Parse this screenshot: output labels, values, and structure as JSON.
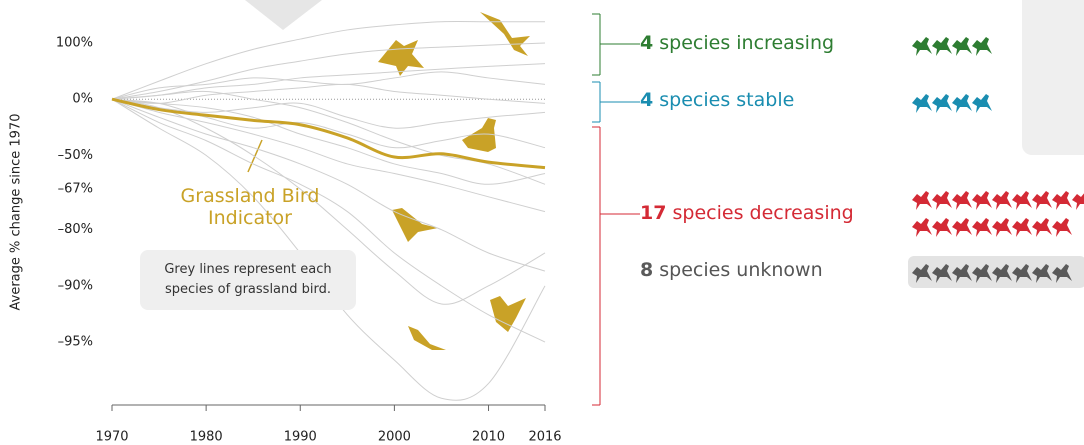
{
  "chart_data": {
    "type": "line",
    "y_label": "Average % change since 1970",
    "log_scale": true,
    "x": [
      1970,
      1975,
      1980,
      1985,
      1990,
      1995,
      2000,
      2005,
      2010,
      2016
    ],
    "xlim": [
      1970,
      2016
    ],
    "xticks": [
      1970,
      1980,
      1990,
      2000,
      2010,
      2016
    ],
    "ylim": [
      -97.7,
      240
    ],
    "yticks": [
      {
        "value": 100,
        "label": "100%"
      },
      {
        "value": 0,
        "label": "0%"
      },
      {
        "value": -50,
        "label": "–50%"
      },
      {
        "value": -67,
        "label": "–67%"
      },
      {
        "value": -80,
        "label": "–80%"
      },
      {
        "value": -90,
        "label": "–90%"
      },
      {
        "value": -95,
        "label": "–95%"
      }
    ],
    "series": [
      {
        "name": "Grassland Bird Indicator",
        "color": "#c9a227",
        "values": [
          0,
          -12,
          -18,
          -23,
          -27,
          -38,
          -51,
          -49,
          -54,
          -57
        ]
      }
    ],
    "species_color": "#cfcfcf",
    "species_lines": [
      [
        0,
        25,
        55,
        85,
        110,
        135,
        150,
        160,
        160,
        160
      ],
      [
        0,
        10,
        25,
        45,
        60,
        75,
        85,
        90,
        95,
        100
      ],
      [
        0,
        5,
        15,
        20,
        30,
        35,
        40,
        45,
        50,
        55
      ],
      [
        0,
        -5,
        5,
        10,
        15,
        20,
        10,
        5,
        0,
        -5
      ],
      [
        0,
        -10,
        -15,
        -10,
        -5,
        -20,
        -30,
        -25,
        -20,
        -15
      ],
      [
        0,
        -15,
        -25,
        -35,
        -45,
        -55,
        -60,
        -65,
        -70,
        -75
      ],
      [
        0,
        -20,
        -35,
        -45,
        -55,
        -65,
        -75,
        -80,
        -85,
        -88
      ],
      [
        0,
        -25,
        -40,
        -55,
        -65,
        -75,
        -85,
        -90,
        -93,
        -95
      ],
      [
        0,
        -30,
        -50,
        -70,
        -85,
        -93,
        -96,
        -97.5,
        -97,
        -90
      ],
      [
        0,
        -10,
        -30,
        -50,
        -67,
        -80,
        -88,
        -92,
        -90,
        -85
      ],
      [
        0,
        -5,
        -10,
        -20,
        -35,
        -45,
        -55,
        -60,
        -65,
        -60
      ],
      [
        0,
        5,
        10,
        0,
        -10,
        -25,
        -40,
        -50,
        -55,
        -65
      ],
      [
        0,
        15,
        20,
        30,
        25,
        20,
        30,
        40,
        30,
        20
      ],
      [
        0,
        -5,
        -20,
        -30,
        -25,
        -35,
        -45,
        -40,
        -35,
        -45
      ]
    ],
    "note": "Grey lines represent each species of grassland bird.",
    "groups": [
      {
        "count": 4,
        "label": "species increasing",
        "color": "#2e7d32"
      },
      {
        "count": 4,
        "label": "species stable",
        "color": "#1a8db0"
      },
      {
        "count": 17,
        "label": "species decreasing",
        "color": "#d42a35"
      },
      {
        "count": 8,
        "label": "species unknown",
        "color": "#5a5a5a"
      }
    ]
  }
}
